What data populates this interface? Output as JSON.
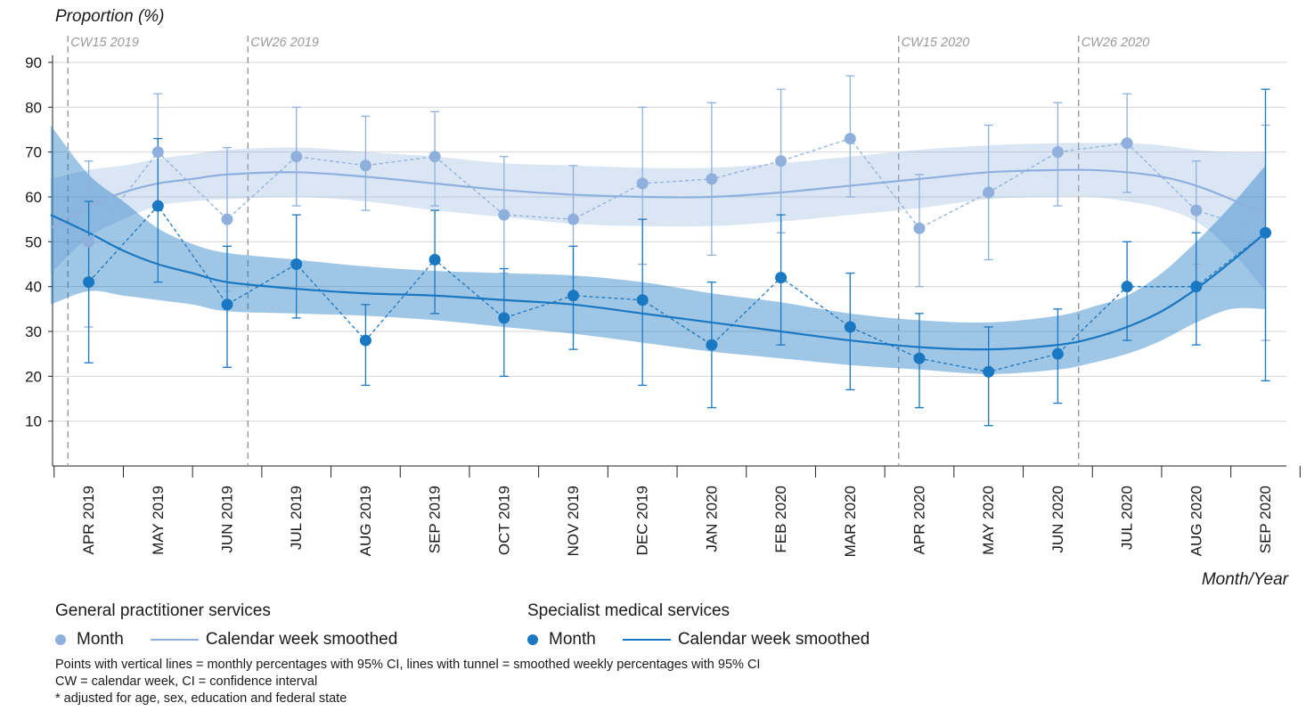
{
  "chart_data": {
    "type": "line",
    "ylabel": "Proportion (%)",
    "xlabel": "Month/Year",
    "ylim": [
      0,
      90
    ],
    "yticks": [
      10,
      20,
      30,
      40,
      50,
      60,
      70,
      80,
      90
    ],
    "grid": true,
    "categories": [
      "APR 2019",
      "MAY 2019",
      "JUN 2019",
      "JUL 2019",
      "AUG 2019",
      "SEP 2019",
      "OCT 2019",
      "NOV 2019",
      "DEC 2019",
      "JAN 2020",
      "FEB 2020",
      "MAR 2020",
      "APR 2020",
      "MAY 2020",
      "JUN 2020",
      "JUL 2020",
      "AUG 2020",
      "SEP 2020"
    ],
    "reference_lines": [
      {
        "label": "CW15 2019",
        "x": -0.3
      },
      {
        "label": "CW26 2019",
        "x": 2.3
      },
      {
        "label": "CW15 2020",
        "x": 11.7
      },
      {
        "label": "CW26 2020",
        "x": 14.3
      }
    ],
    "series": [
      {
        "group": "General practitioner services",
        "kind": "Month",
        "color": "#8fb0dd",
        "values": [
          50,
          70,
          55,
          69,
          67,
          69,
          56,
          55,
          63,
          64,
          68,
          73,
          53,
          61,
          70,
          72,
          57,
          52
        ],
        "ci_low": [
          31,
          57,
          39,
          58,
          57,
          58,
          43,
          42,
          45,
          47,
          52,
          60,
          40,
          46,
          58,
          61,
          45,
          28
        ],
        "ci_high": [
          68,
          83,
          71,
          80,
          78,
          79,
          69,
          67,
          80,
          81,
          84,
          87,
          65,
          76,
          81,
          83,
          68,
          76
        ]
      },
      {
        "group": "General practitioner services",
        "kind": "Calendar week smoothed",
        "color": "#8fb0dd",
        "x": [
          -0.55,
          0,
          0.5,
          1,
          1.5,
          2,
          3,
          4,
          5,
          6,
          7,
          8,
          9,
          10,
          11,
          12,
          13,
          14,
          14.5,
          15,
          15.5,
          16,
          16.5,
          17
        ],
        "values": [
          53,
          58,
          61,
          63,
          64,
          65,
          65.5,
          64.5,
          63,
          61.5,
          60.5,
          60,
          60,
          61,
          62.5,
          64,
          65.5,
          66,
          66,
          65.5,
          64.5,
          62.5,
          59.5,
          56
        ],
        "ci_low": [
          43,
          51,
          55,
          58,
          59,
          59.5,
          60,
          59,
          57,
          55.5,
          54,
          53.5,
          53.5,
          54.5,
          56,
          57.5,
          59.5,
          60,
          60,
          59,
          57.5,
          54.5,
          48,
          39
        ],
        "ci_high": [
          64,
          66,
          67,
          68.5,
          69.5,
          70.5,
          71,
          70,
          69,
          67.5,
          67,
          66.5,
          66.5,
          67.5,
          69,
          70.5,
          71.5,
          72,
          72,
          72,
          71.5,
          70.5,
          70,
          70
        ]
      },
      {
        "group": "Specialist medical services",
        "kind": "Month",
        "color": "#1a78c2",
        "values": [
          41,
          58,
          36,
          45,
          28,
          46,
          33,
          38,
          37,
          27,
          42,
          31,
          24,
          21,
          25,
          40,
          40,
          52
        ],
        "ci_low": [
          23,
          41,
          22,
          33,
          18,
          34,
          20,
          26,
          18,
          13,
          27,
          17,
          13,
          9,
          14,
          28,
          27,
          19
        ],
        "ci_high": [
          59,
          73,
          49,
          56,
          36,
          57,
          44,
          49,
          55,
          41,
          56,
          43,
          34,
          31,
          35,
          50,
          52,
          84
        ]
      },
      {
        "group": "Specialist medical services",
        "kind": "Calendar week smoothed",
        "color": "#1a78c2",
        "x": [
          -0.55,
          0,
          0.5,
          1,
          1.5,
          2,
          3,
          4,
          5,
          6,
          7,
          8,
          9,
          10,
          11,
          12,
          13,
          14,
          14.5,
          15,
          15.5,
          16,
          16.5,
          17
        ],
        "values": [
          56,
          52,
          48,
          45,
          43,
          41,
          39.5,
          38.5,
          38,
          37,
          36,
          34,
          32,
          30,
          28,
          26.5,
          26,
          27,
          28.5,
          31,
          34.5,
          39.5,
          45.5,
          52
        ],
        "ci_low": [
          36,
          39,
          38,
          37,
          36,
          34.5,
          34,
          33.5,
          32.5,
          31,
          29.5,
          27.5,
          25.5,
          24,
          22.5,
          21.5,
          20.5,
          21.5,
          23,
          25,
          28,
          32,
          35,
          35
        ],
        "ci_high": [
          76,
          65,
          59,
          53,
          49.5,
          47.5,
          46,
          44.5,
          43.5,
          43,
          42.5,
          41,
          38.5,
          36.5,
          34,
          32.5,
          32,
          33.5,
          35.5,
          38,
          43,
          50,
          58,
          67
        ]
      }
    ]
  },
  "legend": {
    "gp_title": "General practitioner services",
    "sp_title": "Specialist medical services",
    "gp_month": "Month",
    "gp_smoothed": "Calendar week smoothed",
    "sp_month": "Month",
    "sp_smoothed": "Calendar week smoothed"
  },
  "notes": {
    "line1": "Points with vertical lines = monthly percentages with 95% CI, lines with tunnel = smoothed weekly percentages with 95% CI",
    "line2": "CW = calendar week, CI = confidence interval",
    "line3": "* adjusted for age, sex, education and federal state"
  }
}
